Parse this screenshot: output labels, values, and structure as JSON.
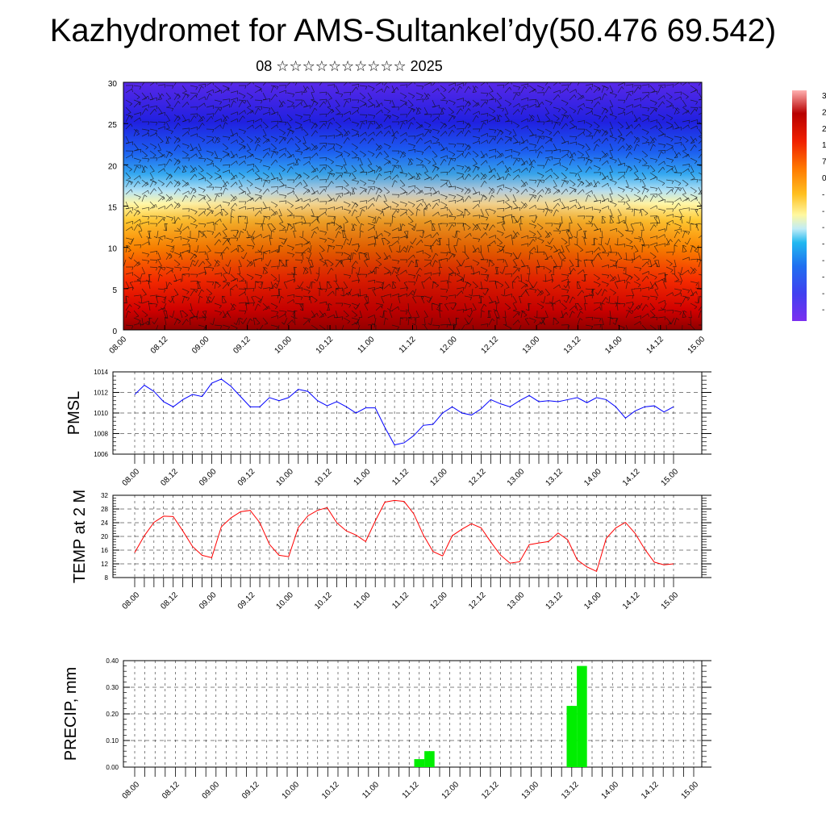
{
  "title": "Kazhydromet for AMS-Sultankel’dy(50.476 69.542)",
  "subtitle": "08 ☆☆☆☆☆☆☆☆☆☆ 2025",
  "colors": {
    "pmsl_line": "#0000ff",
    "temp_line": "#ff0000",
    "precip_bar": "#00ee00",
    "colorbar": [
      "#7b2ff0",
      "#4a4af5",
      "#1f6ef0",
      "#1fb0f0",
      "#9fe0f0",
      "#fff8a0",
      "#ffd030",
      "#ff9a10",
      "#ff5a00",
      "#e81010",
      "#c00000",
      "#ff9090"
    ]
  },
  "colorbar_labels": [
    "3",
    "2",
    "2",
    "1",
    "7",
    "0",
    "-",
    "-",
    "-",
    "-",
    "-",
    "-",
    "-",
    "-"
  ],
  "chart_data": [
    {
      "type": "heatmap",
      "ylim": [
        0,
        30
      ],
      "y_ticks": [
        "0",
        "5",
        "10",
        "15",
        "20",
        "25",
        "30"
      ],
      "x_ticks": [
        "08.00",
        "08.12",
        "09.00",
        "09.12",
        "10.00",
        "10.12",
        "11.00",
        "11.12",
        "12.00",
        "12.12",
        "13.00",
        "13.12",
        "14.00",
        "14.12",
        "15.00"
      ],
      "grid": false
    },
    {
      "type": "line",
      "ylabel": "PMSL",
      "ylim": [
        1006,
        1014
      ],
      "y_ticks": [
        "1006",
        "1008",
        "1010",
        "1012",
        "1014"
      ],
      "x_ticks": [
        "08.00",
        "08.12",
        "09.00",
        "09.12",
        "10.00",
        "10.12",
        "11.00",
        "11.12",
        "12.00",
        "12.12",
        "13.00",
        "13.12",
        "14.00",
        "14.12",
        "15.00"
      ],
      "grid": true,
      "values": [
        1011.8,
        1012.7,
        1012.1,
        1011.1,
        1010.6,
        1011.3,
        1011.8,
        1011.6,
        1012.9,
        1013.3,
        1012.6,
        1011.6,
        1010.6,
        1010.6,
        1011.5,
        1011.2,
        1011.5,
        1012.3,
        1012.1,
        1011.2,
        1010.7,
        1011.1,
        1010.6,
        1010.0,
        1010.5,
        1010.5,
        1008.6,
        1006.9,
        1007.1,
        1007.8,
        1008.8,
        1008.9,
        1010.0,
        1010.6,
        1010.0,
        1009.8,
        1010.4,
        1011.3,
        1010.9,
        1010.6,
        1011.2,
        1011.7,
        1011.1,
        1011.2,
        1011.1,
        1011.3,
        1011.5,
        1011.0,
        1011.5,
        1011.3,
        1010.6,
        1009.5,
        1010.2,
        1010.6,
        1010.7,
        1010.1,
        1010.6
      ]
    },
    {
      "type": "line",
      "ylabel": "TEMP at 2 M",
      "ylim": [
        8,
        32
      ],
      "y_ticks": [
        "8",
        "12",
        "16",
        "20",
        "24",
        "28",
        "32"
      ],
      "x_ticks": [
        "08.00",
        "08.12",
        "09.00",
        "09.12",
        "10.00",
        "10.12",
        "11.00",
        "11.12",
        "12.00",
        "12.12",
        "13.00",
        "13.12",
        "14.00",
        "14.12",
        "15.00"
      ],
      "grid": true,
      "values": [
        15.3,
        20.2,
        24.1,
        25.9,
        25.8,
        21.6,
        17.1,
        14.5,
        13.8,
        22.8,
        25.4,
        27.2,
        27.6,
        24.0,
        17.7,
        14.5,
        14.1,
        22.6,
        26.0,
        27.6,
        28.4,
        24.0,
        21.6,
        20.4,
        18.5,
        24.5,
        30.0,
        30.5,
        30.2,
        26.6,
        20.4,
        15.6,
        14.3,
        20.2,
        22.1,
        23.7,
        22.5,
        18.4,
        14.6,
        12.2,
        12.6,
        17.6,
        18.1,
        18.5,
        21.0,
        19.0,
        13.1,
        11.1,
        9.8,
        19.4,
        22.5,
        24.1,
        20.9,
        16.3,
        12.5,
        11.7,
        12.0
      ]
    },
    {
      "type": "bar",
      "ylabel": "PRECIP, mm",
      "ylim": [
        0,
        0.4
      ],
      "y_ticks": [
        "0.00",
        "0.10",
        "0.20",
        "0.30",
        "0.40"
      ],
      "x_ticks": [
        "08.00",
        "08.12",
        "09.00",
        "09.12",
        "10.00",
        "10.12",
        "11.00",
        "11.12",
        "12.00",
        "12.12",
        "13.00",
        "13.12",
        "14.00",
        "14.12",
        "15.00"
      ],
      "grid": true,
      "values": [
        0,
        0,
        0,
        0,
        0,
        0,
        0,
        0,
        0,
        0,
        0,
        0,
        0,
        0,
        0,
        0,
        0,
        0,
        0,
        0,
        0,
        0,
        0,
        0,
        0,
        0,
        0,
        0,
        0.03,
        0.06,
        0,
        0,
        0,
        0,
        0,
        0,
        0,
        0,
        0,
        0,
        0,
        0,
        0,
        0.23,
        0.38,
        0,
        0,
        0,
        0,
        0,
        0,
        0,
        0,
        0,
        0,
        0
      ]
    }
  ]
}
